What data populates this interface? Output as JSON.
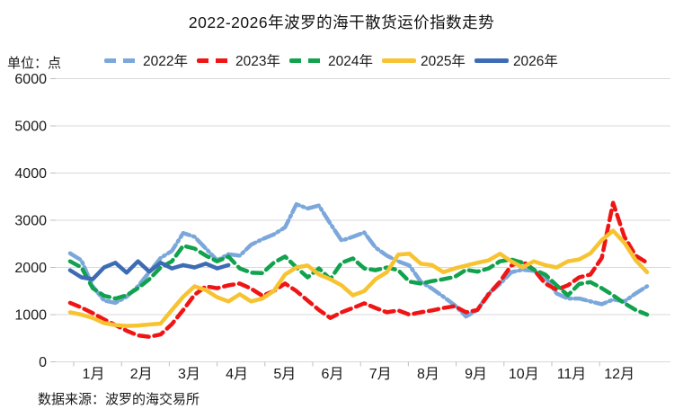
{
  "title": "2022-2026年波罗的海干散货运价指数走势",
  "unit_label": "单位：点",
  "source": "数据来源：波罗的海交易所",
  "chart_data": {
    "type": "line",
    "x_unit": "week_of_year",
    "xlabels": [
      "1月",
      "2月",
      "3月",
      "4月",
      "5月",
      "6月",
      "7月",
      "8月",
      "9月",
      "10月",
      "11月",
      "12月"
    ],
    "ylim": [
      0,
      6000
    ],
    "ytick_step": 1000,
    "yticks": [
      0,
      1000,
      2000,
      3000,
      4000,
      5000,
      6000
    ],
    "grid": "horizontal",
    "legend_position": "top",
    "axis_text_color": "#1a1a1a",
    "grid_color": "#d9d9d9",
    "series": [
      {
        "name": "2022年",
        "color": "#7BA7DB",
        "dash": true,
        "values": [
          2300,
          2150,
          1600,
          1300,
          1250,
          1380,
          1600,
          1900,
          2200,
          2350,
          2730,
          2650,
          2400,
          2150,
          2280,
          2250,
          2480,
          2600,
          2700,
          2850,
          3340,
          3250,
          3310,
          2930,
          2570,
          2650,
          2740,
          2420,
          2250,
          2130,
          2040,
          1700,
          1550,
          1380,
          1200,
          960,
          1100,
          1450,
          1650,
          1900,
          1950,
          1930,
          1800,
          1450,
          1340,
          1340,
          1280,
          1220,
          1320,
          1280,
          1450,
          1600
        ]
      },
      {
        "name": "2023年",
        "color": "#F01414",
        "dash": true,
        "values": [
          1250,
          1150,
          1030,
          900,
          780,
          660,
          560,
          530,
          580,
          800,
          1100,
          1420,
          1600,
          1560,
          1620,
          1660,
          1550,
          1400,
          1500,
          1660,
          1500,
          1300,
          1100,
          930,
          1050,
          1140,
          1240,
          1140,
          1050,
          1090,
          1000,
          1050,
          1090,
          1140,
          1180,
          1050,
          1100,
          1430,
          1700,
          2040,
          2130,
          1950,
          1660,
          1530,
          1620,
          1790,
          1850,
          2200,
          3370,
          2650,
          2250,
          2100
        ]
      },
      {
        "name": "2024年",
        "color": "#10A24D",
        "dash": true,
        "values": [
          2130,
          2000,
          1560,
          1400,
          1340,
          1410,
          1560,
          1750,
          2000,
          2130,
          2460,
          2400,
          2250,
          2130,
          2230,
          1980,
          1890,
          1880,
          2100,
          2230,
          2000,
          1790,
          1980,
          1750,
          2100,
          2190,
          1980,
          1940,
          2000,
          1940,
          1700,
          1660,
          1710,
          1750,
          1800,
          1950,
          1910,
          1980,
          2130,
          2170,
          2100,
          1950,
          1850,
          1620,
          1410,
          1650,
          1690,
          1560,
          1410,
          1240,
          1100,
          1000
        ]
      },
      {
        "name": "2025年",
        "color": "#F7C331",
        "dash": false,
        "values": [
          1050,
          1000,
          930,
          820,
          780,
          760,
          770,
          790,
          810,
          1100,
          1380,
          1600,
          1520,
          1370,
          1280,
          1430,
          1280,
          1340,
          1500,
          1850,
          2000,
          2040,
          1850,
          1750,
          1620,
          1410,
          1500,
          1750,
          1900,
          2270,
          2290,
          2080,
          2050,
          1900,
          1980,
          2040,
          2100,
          2150,
          2290,
          2130,
          2000,
          2130,
          2050,
          2000,
          2130,
          2170,
          2300,
          2580,
          2780,
          2520,
          2150,
          1900
        ]
      },
      {
        "name": "2026年",
        "color": "#3D6CB4",
        "dash": false,
        "values": [
          1940,
          1790,
          1750,
          2000,
          2100,
          1890,
          2130,
          1910,
          2100,
          1980,
          2050,
          2000,
          2080,
          1980,
          2050
        ]
      }
    ]
  }
}
